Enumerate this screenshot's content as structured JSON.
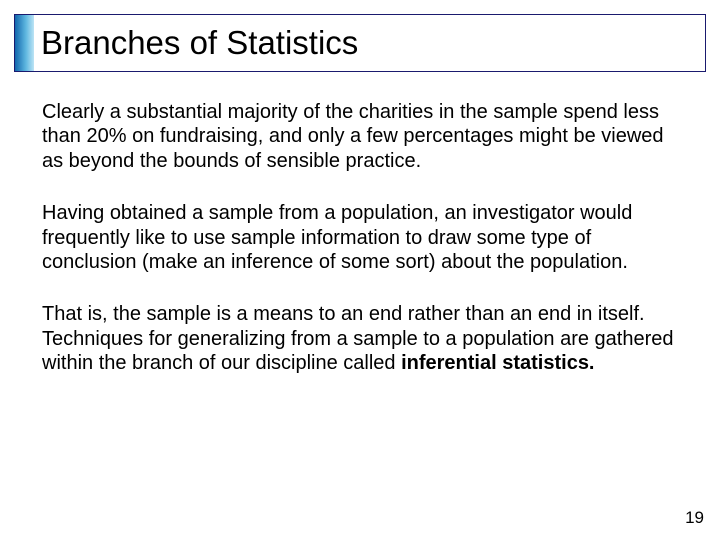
{
  "slide": {
    "title": "Branches of Statistics",
    "title_fontsize": 33,
    "title_bar_gradient": [
      "#0a5fa8",
      "#5fb8e0",
      "#bde4f5"
    ],
    "title_border_color": "#1a1a6e",
    "background_color": "#ffffff",
    "body_fontsize": 20,
    "body_color": "#000000",
    "paragraphs": [
      "Clearly a substantial majority of the charities in the sample spend less than 20% on fundraising, and only a few percentages might be viewed as beyond the bounds of sensible practice.",
      "Having obtained a sample from a population, an investigator would frequently like to use sample information to draw some type of conclusion (make an inference of some sort) about the population."
    ],
    "paragraph3_pre": "That is, the sample is a means to an end rather than an end in itself. Techniques for generalizing from a sample to a population are gathered within the branch of our discipline called ",
    "paragraph3_bold": "inferential statistics.",
    "page_number": "19"
  }
}
